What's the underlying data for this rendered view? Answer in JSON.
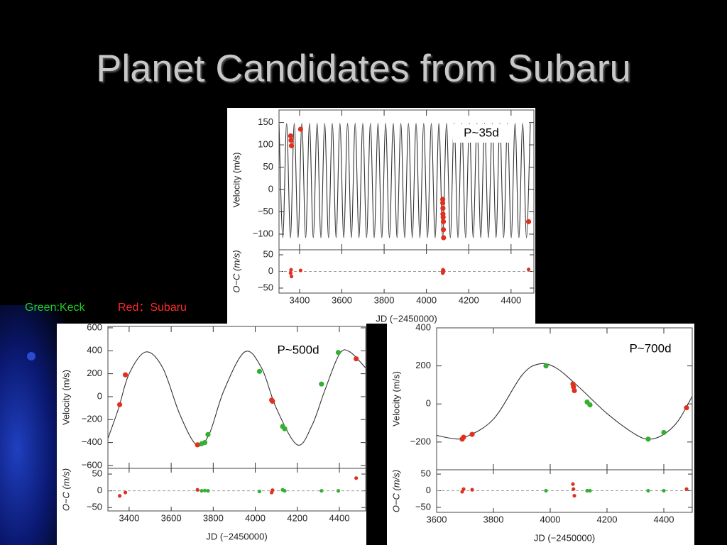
{
  "title": "Planet Candidates from Subaru",
  "notes": [
    {
      "text": "Green:Keck",
      "color": "#22cc22"
    },
    {
      "text": "Red：Subaru",
      "color": "#ff2a2a"
    }
  ],
  "chart_data": [
    {
      "type": "scatter",
      "annotation": "P~35d",
      "xlabel": "JD (−2450000)",
      "ylabel": "Velocity (m/s)",
      "residual_ylabel": "O−C (m/s)",
      "xlim": [
        3303,
        4508
      ],
      "xticks": [
        3400,
        3600,
        3800,
        4000,
        4200,
        4400
      ],
      "ylim": [
        -135,
        178
      ],
      "yticks": [
        150,
        100,
        50,
        0,
        {
          "value": -50,
          "label": "−50"
        },
        {
          "value": -100,
          "label": "−100"
        }
      ],
      "residual_ylim": [
        -65,
        65
      ],
      "residual_yticks": [
        50,
        0,
        {
          "value": -50,
          "label": "−50"
        }
      ],
      "fit": {
        "color": "#333333",
        "x": [
          3303,
          3321,
          3339,
          3357,
          3375,
          3393,
          3411,
          3429,
          3447,
          3465,
          3483,
          3501,
          3519,
          3537,
          3555,
          3573,
          3591,
          3609,
          3627,
          3645,
          3663,
          3681,
          3699,
          3717,
          3735,
          3753,
          3771,
          3789,
          3807,
          3825,
          3843,
          3861,
          3879,
          3897,
          3915,
          3933,
          3951,
          3969,
          3987,
          4005,
          4023,
          4041,
          4059,
          4077,
          4095,
          4113,
          4131,
          4149,
          4167,
          4185,
          4203,
          4221,
          4239,
          4257,
          4275,
          4293,
          4311,
          4329,
          4347,
          4365,
          4383,
          4401,
          4419,
          4437,
          4455,
          4473,
          4491
        ],
        "values": [
          148,
          -108,
          148,
          -108,
          148,
          -108,
          148,
          -108,
          148,
          -108,
          148,
          -108,
          148,
          -108,
          148,
          -108,
          148,
          -108,
          148,
          -108,
          148,
          -108,
          148,
          -108,
          148,
          -108,
          148,
          -108,
          148,
          -108,
          148,
          -108,
          148,
          -108,
          148,
          -108,
          148,
          -108,
          148,
          -108,
          148,
          -108,
          148,
          -108,
          148,
          -108,
          148,
          -108,
          148,
          -108,
          148,
          -108,
          148,
          -108,
          148,
          -108,
          148,
          -108,
          148,
          -108,
          148,
          -108,
          148,
          -108,
          148,
          -108,
          148
        ]
      },
      "series": [
        {
          "color": "#e03020",
          "x": [
            3358,
            3360,
            3362,
            3405,
            4077,
            4077,
            4078,
            4078,
            4079,
            4080,
            4080,
            4081,
            4483
          ],
          "values": [
            120,
            110,
            98,
            135,
            -22,
            -30,
            -42,
            -55,
            -62,
            -72,
            -90,
            -108,
            -72
          ],
          "residuals": [
            -5,
            5,
            -15,
            3,
            0,
            -5,
            5,
            -3,
            2,
            -2,
            0,
            3,
            6
          ]
        }
      ]
    },
    {
      "type": "scatter",
      "annotation": "P~500d",
      "xlabel": "JD (−2450000)",
      "ylabel": "Velocity (m/s)",
      "residual_ylabel": "O−C (m/s)",
      "xlim": [
        3299,
        4525
      ],
      "xticks": [
        3400,
        3600,
        3800,
        4000,
        4200,
        4400
      ],
      "ylim": [
        -625,
        612
      ],
      "yticks": [
        600,
        400,
        200,
        0,
        {
          "value": -200,
          "label": "−200"
        },
        {
          "value": -400,
          "label": "−400"
        },
        {
          "value": -600,
          "label": "−600"
        }
      ],
      "residual_ylim": [
        -60,
        67
      ],
      "residual_yticks": [
        50,
        0,
        {
          "value": -50,
          "label": "−50"
        }
      ],
      "fit": {
        "color": "#333333",
        "x": [
          3300,
          3350,
          3400,
          3480,
          3560,
          3640,
          3720,
          3780,
          3850,
          3950,
          4030,
          4100,
          4200,
          4270,
          4330,
          4400,
          4450,
          4525
        ],
        "values": [
          -360,
          -100,
          200,
          390,
          250,
          -150,
          -420,
          -330,
          50,
          390,
          250,
          -100,
          -420,
          -250,
          50,
          370,
          390,
          250
        ]
      },
      "series": [
        {
          "color": "#e03020",
          "x": [
            3355,
            3382,
            3725,
            4078,
            4082,
            4480
          ],
          "values": [
            -70,
            190,
            -420,
            -30,
            -40,
            330
          ],
          "residuals": [
            -15,
            -5,
            3,
            -5,
            2,
            38
          ]
        },
        {
          "color": "#33b033",
          "x": [
            3745,
            3760,
            3775,
            4020,
            4130,
            4140,
            4315,
            4395
          ],
          "values": [
            -410,
            -400,
            -330,
            220,
            -260,
            -280,
            110,
            385
          ],
          "residuals": [
            0,
            1,
            0,
            -2,
            3,
            0,
            0,
            0
          ]
        }
      ]
    },
    {
      "type": "scatter",
      "annotation": "P~700d",
      "xlabel": "JD (−2450000)",
      "ylabel": "Velocity (m/s)",
      "residual_ylabel": "O−C (m/s)",
      "xlim": [
        3600,
        4500
      ],
      "xticks": [
        3600,
        3800,
        4000,
        4200,
        4400
      ],
      "ylim": [
        -346,
        400
      ],
      "yticks": [
        400,
        200,
        0,
        {
          "value": -200,
          "label": "−200"
        }
      ],
      "residual_ylim": [
        -65,
        63
      ],
      "residual_yticks": [
        50,
        0,
        {
          "value": -50,
          "label": "−50"
        }
      ],
      "fit": {
        "color": "#333333",
        "x": [
          3600,
          3650,
          3700,
          3800,
          3900,
          3960,
          4020,
          4100,
          4200,
          4300,
          4350,
          4400,
          4450,
          4500
        ],
        "values": [
          -165,
          -180,
          -175,
          -80,
          150,
          210,
          190,
          90,
          -50,
          -160,
          -185,
          -160,
          -90,
          40
        ]
      },
      "series": [
        {
          "color": "#e03020",
          "x": [
            3690,
            3695,
            3725,
            4080,
            4082,
            4085,
            4480
          ],
          "values": [
            -185,
            -175,
            -160,
            105,
            90,
            70,
            -20
          ],
          "residuals": [
            -3,
            5,
            3,
            20,
            5,
            -15,
            5
          ]
        },
        {
          "color": "#33b033",
          "x": [
            3985,
            4130,
            4140,
            4345,
            4400
          ],
          "values": [
            200,
            10,
            -5,
            -185,
            -150
          ],
          "residuals": [
            0,
            0,
            0,
            0,
            0
          ]
        }
      ]
    }
  ]
}
